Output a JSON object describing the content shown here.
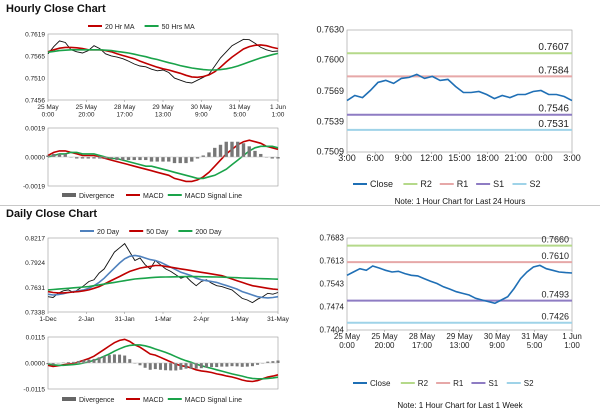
{
  "sections": {
    "hourly_title": "Hourly Close Chart",
    "daily_title": "Daily Close Chart"
  },
  "colors": {
    "ma_short": "#c00000",
    "ma_long": "#1aa34a",
    "price": "#111111",
    "macd": "#c00000",
    "signal": "#1aa34a",
    "divergence": "#555555",
    "daily_20": "#4f81bd",
    "close": "#1f6fb5",
    "r2": "#b5d98a",
    "r1": "#e6a8a8",
    "s1": "#8e7cc3",
    "s2": "#9fd3e8"
  },
  "chart_data": [
    {
      "id": "hourly_price",
      "type": "line",
      "ylim": [
        0.7456,
        0.7619
      ],
      "yticks": [
        "0.7619",
        "0.7565",
        "0.7510",
        "0.7456"
      ],
      "xticks": [
        "25 May\n0:00",
        "25 May\n20:00",
        "28 May\n17:00",
        "29 May\n13:00",
        "30 May\n9:00",
        "31 May\n5:00",
        "1 Jun\n1:00"
      ],
      "legend": [
        "20 Hr MA",
        "50 Hrs MA"
      ],
      "series": [
        {
          "name": "Close",
          "values": [
            0.757,
            0.7588,
            0.7602,
            0.7598,
            0.758,
            0.7575,
            0.7572,
            0.7578,
            0.759,
            0.7583,
            0.757,
            0.7565,
            0.7562,
            0.7558,
            0.7552,
            0.7545,
            0.754,
            0.7538,
            0.7532,
            0.7528,
            0.753,
            0.7524,
            0.751,
            0.7505,
            0.75,
            0.7498,
            0.7505,
            0.7512,
            0.752,
            0.754,
            0.756,
            0.7575,
            0.759,
            0.7598,
            0.7606,
            0.7605,
            0.7596,
            0.7586,
            0.758,
            0.7576,
            0.7577
          ]
        },
        {
          "name": "20 Hr MA",
          "values": [
            0.7575,
            0.758,
            0.7584,
            0.7586,
            0.7586,
            0.7585,
            0.7583,
            0.758,
            0.758,
            0.758,
            0.7578,
            0.7575,
            0.757,
            0.7566,
            0.7562,
            0.7558,
            0.7552,
            0.7547,
            0.7542,
            0.7537,
            0.7533,
            0.753,
            0.7526,
            0.7522,
            0.7517,
            0.7513,
            0.7512,
            0.7514,
            0.7518,
            0.7526,
            0.7537,
            0.755,
            0.7562,
            0.7572,
            0.7582,
            0.7588,
            0.7591,
            0.7592,
            0.759,
            0.7586,
            0.7583
          ]
        },
        {
          "name": "50 Hrs MA",
          "values": [
            0.7574,
            0.7576,
            0.7578,
            0.7579,
            0.758,
            0.758,
            0.758,
            0.758,
            0.758,
            0.758,
            0.7579,
            0.7578,
            0.7576,
            0.7574,
            0.7572,
            0.7569,
            0.7566,
            0.7563,
            0.7559,
            0.7556,
            0.7552,
            0.7548,
            0.7545,
            0.7541,
            0.7538,
            0.7535,
            0.7533,
            0.7531,
            0.753,
            0.753,
            0.7531,
            0.7533,
            0.7536,
            0.754,
            0.7545,
            0.755,
            0.7555,
            0.756,
            0.7564,
            0.7568,
            0.7571
          ]
        }
      ]
    },
    {
      "id": "hourly_macd",
      "type": "line",
      "ylim": [
        -0.0019,
        0.0019
      ],
      "yticks": [
        "0.0019",
        "0.0000",
        "-0.0019"
      ],
      "legend": [
        "Divergence",
        "MACD",
        "MACD Signal Line"
      ],
      "series": [
        {
          "name": "MACD",
          "values": [
            0.0001,
            0.0003,
            0.0004,
            0.0004,
            0.0003,
            0.0002,
            0.0001,
            0.0001,
            0.0001,
            0.0,
            -0.0001,
            -0.0002,
            -0.0003,
            -0.0004,
            -0.0005,
            -0.0006,
            -0.0007,
            -0.0008,
            -0.0009,
            -0.001,
            -0.0011,
            -0.0012,
            -0.0014,
            -0.0015,
            -0.0016,
            -0.0016,
            -0.0015,
            -0.0013,
            -0.001,
            -0.0006,
            -0.0002,
            0.0002,
            0.0005,
            0.0008,
            0.001,
            0.0011,
            0.001,
            0.0009,
            0.0007,
            0.0006,
            0.0005
          ]
        },
        {
          "name": "MACD Signal Line",
          "values": [
            0.0,
            0.0001,
            0.0002,
            0.0002,
            0.0003,
            0.0003,
            0.0002,
            0.0002,
            0.0002,
            0.0001,
            0.0,
            -0.0001,
            -0.0001,
            -0.0002,
            -0.0003,
            -0.0004,
            -0.0005,
            -0.0006,
            -0.0006,
            -0.0007,
            -0.0008,
            -0.0009,
            -0.001,
            -0.0011,
            -0.0012,
            -0.0013,
            -0.0014,
            -0.0014,
            -0.0013,
            -0.0012,
            -0.001,
            -0.0008,
            -0.0005,
            -0.0002,
            0.0001,
            0.0004,
            0.0006,
            0.0007,
            0.0007,
            0.0007,
            0.0006
          ]
        },
        {
          "name": "Divergence",
          "values": [
            0.0001,
            0.0002,
            0.0002,
            0.0002,
            0.0,
            -0.0001,
            -0.0001,
            -0.0001,
            -0.0001,
            -0.0001,
            -0.0001,
            -0.0001,
            -0.0002,
            -0.0002,
            -0.0002,
            -0.0002,
            -0.0002,
            -0.0002,
            -0.0003,
            -0.0003,
            -0.0003,
            -0.0003,
            -0.0004,
            -0.0004,
            -0.0004,
            -0.0003,
            -0.0001,
            0.0001,
            0.0003,
            0.0006,
            0.0008,
            0.001,
            0.001,
            0.001,
            0.0009,
            0.0007,
            0.0004,
            0.0002,
            0.0,
            -0.0001,
            -0.0001
          ]
        }
      ]
    },
    {
      "id": "hourly_pivot",
      "type": "line",
      "ylim": [
        0.7509,
        0.763
      ],
      "yticks": [
        "0.7630",
        "0.7600",
        "0.7569",
        "0.7539",
        "0.7509"
      ],
      "xticks": [
        "3:00",
        "6:00",
        "9:00",
        "12:00",
        "15:00",
        "18:00",
        "21:00",
        "0:00",
        "3:00"
      ],
      "legend": [
        "Close",
        "R2",
        "R1",
        "S1",
        "S2"
      ],
      "levels": {
        "R2": 0.7607,
        "R1": 0.7584,
        "S1": 0.7546,
        "S2": 0.7531
      },
      "level_labels": {
        "R2": "0.7607",
        "R1": "0.7584",
        "S1": "0.7546",
        "S2": "0.7531"
      },
      "series": [
        {
          "name": "Close",
          "values": [
            0.756,
            0.7565,
            0.7563,
            0.757,
            0.7578,
            0.758,
            0.7577,
            0.7582,
            0.7583,
            0.7586,
            0.7582,
            0.7584,
            0.758,
            0.7581,
            0.7574,
            0.7568,
            0.7568,
            0.7569,
            0.7566,
            0.7562,
            0.7565,
            0.7563,
            0.7566,
            0.7566,
            0.7569,
            0.757,
            0.7566,
            0.7566,
            0.7564,
            0.756
          ]
        }
      ],
      "note": "Note: 1 Hour Chart for Last 24 Hours"
    },
    {
      "id": "daily_price",
      "type": "line",
      "ylim": [
        0.7338,
        0.8217
      ],
      "yticks": [
        "0.8217",
        "0.7924",
        "0.7631",
        "0.7338"
      ],
      "xticks": [
        "1-Dec",
        "2-Jan",
        "31-Jan",
        "1-Mar",
        "2-Apr",
        "1-May",
        "31-May"
      ],
      "legend": [
        "20 Day",
        "50 Day",
        "200 Day"
      ],
      "series": [
        {
          "name": "Close",
          "values": [
            0.752,
            0.751,
            0.756,
            0.759,
            0.76,
            0.757,
            0.761,
            0.765,
            0.77,
            0.772,
            0.78,
            0.785,
            0.795,
            0.805,
            0.81,
            0.815,
            0.805,
            0.795,
            0.798,
            0.79,
            0.785,
            0.795,
            0.79,
            0.785,
            0.782,
            0.778,
            0.774,
            0.776,
            0.77,
            0.765,
            0.77,
            0.772,
            0.768,
            0.765,
            0.764,
            0.762,
            0.76,
            0.755,
            0.75,
            0.748,
            0.745,
            0.749,
            0.752,
            0.756,
            0.755,
            0.757
          ]
        },
        {
          "name": "20 Day",
          "values": [
            0.755,
            0.754,
            0.7545,
            0.7555,
            0.757,
            0.758,
            0.759,
            0.76,
            0.762,
            0.765,
            0.769,
            0.774,
            0.78,
            0.786,
            0.792,
            0.797,
            0.8,
            0.801,
            0.8,
            0.798,
            0.796,
            0.795,
            0.793,
            0.79,
            0.787,
            0.784,
            0.781,
            0.779,
            0.777,
            0.774,
            0.772,
            0.771,
            0.77,
            0.769,
            0.767,
            0.765,
            0.763,
            0.761,
            0.758,
            0.756,
            0.754,
            0.752,
            0.751,
            0.7505,
            0.751,
            0.752
          ]
        },
        {
          "name": "50 Day",
          "values": [
            0.758,
            0.757,
            0.7565,
            0.7565,
            0.757,
            0.7575,
            0.758,
            0.759,
            0.76,
            0.762,
            0.764,
            0.767,
            0.77,
            0.773,
            0.776,
            0.779,
            0.782,
            0.784,
            0.786,
            0.787,
            0.788,
            0.789,
            0.789,
            0.788,
            0.787,
            0.786,
            0.785,
            0.784,
            0.783,
            0.782,
            0.781,
            0.78,
            0.779,
            0.778,
            0.777,
            0.775,
            0.773,
            0.771,
            0.769,
            0.767,
            0.765,
            0.764,
            0.763,
            0.762,
            0.761,
            0.7605
          ]
        },
        {
          "name": "200 Day",
          "values": [
            0.76,
            0.7605,
            0.761,
            0.7615,
            0.762,
            0.7625,
            0.763,
            0.7635,
            0.764,
            0.765,
            0.766,
            0.767,
            0.768,
            0.769,
            0.77,
            0.771,
            0.772,
            0.773,
            0.7735,
            0.774,
            0.7745,
            0.775,
            0.7752,
            0.7754,
            0.7755,
            0.7756,
            0.7757,
            0.7758,
            0.7758,
            0.7758,
            0.7757,
            0.7756,
            0.7755,
            0.7754,
            0.7752,
            0.775,
            0.7748,
            0.7745,
            0.7742,
            0.774,
            0.7738,
            0.7736,
            0.7734,
            0.7732,
            0.773,
            0.7728
          ]
        }
      ]
    },
    {
      "id": "daily_macd",
      "type": "line",
      "ylim": [
        -0.0115,
        0.0115
      ],
      "yticks": [
        "0.0115",
        "0.0000",
        "-0.0115"
      ],
      "legend": [
        "Divergence",
        "MACD",
        "MACD Signal Line"
      ],
      "series": [
        {
          "name": "MACD",
          "values": [
            -0.001,
            -0.0015,
            -0.0012,
            -0.0008,
            -0.0005,
            -0.0002,
            0.0005,
            0.0012,
            0.002,
            0.003,
            0.0045,
            0.006,
            0.0075,
            0.009,
            0.01,
            0.0105,
            0.0095,
            0.008,
            0.007,
            0.0055,
            0.004,
            0.0035,
            0.0025,
            0.0015,
            0.0005,
            -0.0005,
            -0.0012,
            -0.0015,
            -0.0022,
            -0.003,
            -0.0035,
            -0.0038,
            -0.0042,
            -0.0048,
            -0.0052,
            -0.0058,
            -0.0062,
            -0.0068,
            -0.0075,
            -0.008,
            -0.0082,
            -0.0078,
            -0.007,
            -0.0062,
            -0.0058,
            -0.0052
          ]
        },
        {
          "name": "MACD Signal Line",
          "values": [
            -0.0005,
            -0.0008,
            -0.001,
            -0.001,
            -0.0009,
            -0.0007,
            -0.0004,
            0.0,
            0.0005,
            0.0012,
            0.002,
            0.003,
            0.004,
            0.0052,
            0.0063,
            0.0072,
            0.0078,
            0.008,
            0.008,
            0.0076,
            0.007,
            0.0062,
            0.0055,
            0.0047,
            0.0038,
            0.0028,
            0.0018,
            0.001,
            0.0003,
            -0.0005,
            -0.0012,
            -0.0018,
            -0.0024,
            -0.003,
            -0.0036,
            -0.0042,
            -0.0048,
            -0.0053,
            -0.0058,
            -0.0064,
            -0.0068,
            -0.007,
            -0.007,
            -0.0068,
            -0.0066,
            -0.0063
          ]
        },
        {
          "name": "Divergence",
          "values": [
            -0.0005,
            -0.0007,
            -0.0002,
            0.0002,
            0.0004,
            0.0005,
            0.0009,
            0.0012,
            0.0015,
            0.0018,
            0.0025,
            0.003,
            0.0035,
            0.0038,
            0.0037,
            0.0033,
            0.0017,
            0.0,
            -0.001,
            -0.0021,
            -0.003,
            -0.0027,
            -0.003,
            -0.0032,
            -0.0033,
            -0.0033,
            -0.003,
            -0.0025,
            -0.0025,
            -0.0025,
            -0.0023,
            -0.002,
            -0.0018,
            -0.0018,
            -0.0016,
            -0.0016,
            -0.0014,
            -0.0015,
            -0.0017,
            -0.0016,
            -0.0014,
            -0.0008,
            0.0,
            0.0006,
            0.0008,
            0.0011
          ]
        }
      ]
    },
    {
      "id": "daily_pivot",
      "type": "line",
      "ylim": [
        0.7404,
        0.7683
      ],
      "yticks": [
        "0.7683",
        "0.7613",
        "0.7543",
        "0.7474",
        "0.7404"
      ],
      "xticks": [
        "25 May\n0:00",
        "25 May\n20:00",
        "28 May\n17:00",
        "29 May\n13:00",
        "30 May\n9:00",
        "31 May\n5:00",
        "1 Jun\n1:00"
      ],
      "legend": [
        "Close",
        "R2",
        "R1",
        "S1",
        "S2"
      ],
      "levels": {
        "R2": 0.766,
        "R1": 0.761,
        "S1": 0.7493,
        "S2": 0.7426
      },
      "level_labels": {
        "R2": "0.7660",
        "R1": "0.7610",
        "S1": "0.7493",
        "S2": "0.7426"
      },
      "series": [
        {
          "name": "Close",
          "values": [
            0.757,
            0.758,
            0.759,
            0.7585,
            0.7598,
            0.7592,
            0.7585,
            0.758,
            0.7582,
            0.7575,
            0.757,
            0.7568,
            0.756,
            0.7552,
            0.7545,
            0.7535,
            0.7528,
            0.752,
            0.7515,
            0.751,
            0.75,
            0.7495,
            0.749,
            0.7485,
            0.7495,
            0.7505,
            0.753,
            0.756,
            0.758,
            0.7595,
            0.76,
            0.759,
            0.7585,
            0.758,
            0.7578,
            0.7577
          ]
        }
      ],
      "note": "Note: 1 Hour Chart for Last 1 Week"
    }
  ]
}
